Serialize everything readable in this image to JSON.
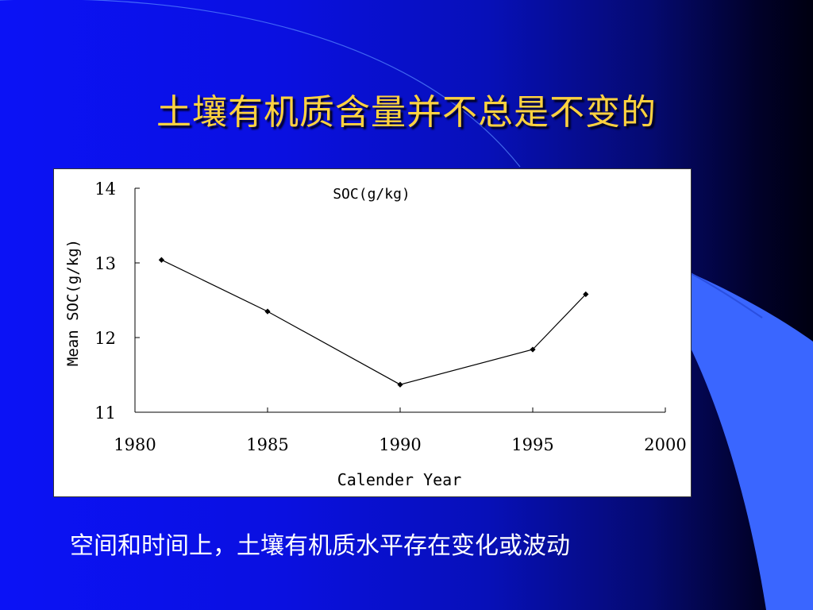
{
  "slide": {
    "title": "土壤有机质含量并不总是不变的",
    "caption": "空间和时间上，土壤有机质水平存在变化或波动"
  },
  "chart_data": {
    "type": "line",
    "title": "SOC(g/kg)",
    "xlabel": "Calender Year",
    "ylabel": "Mean SOC(g/kg)",
    "xlim": [
      1980,
      2000
    ],
    "ylim": [
      11,
      14
    ],
    "x_ticks": [
      "1980",
      "1985",
      "1990",
      "1995",
      "2000"
    ],
    "y_ticks": [
      "11",
      "12",
      "13",
      "14"
    ],
    "series": [
      {
        "x": [
          1981,
          1985,
          1990,
          1995,
          1997
        ],
        "y": [
          13.04,
          12.35,
          11.37,
          11.84,
          12.58
        ]
      }
    ],
    "grid": false,
    "legend": "none",
    "colors": {
      "line": "#000000",
      "marker": "#000000"
    }
  }
}
